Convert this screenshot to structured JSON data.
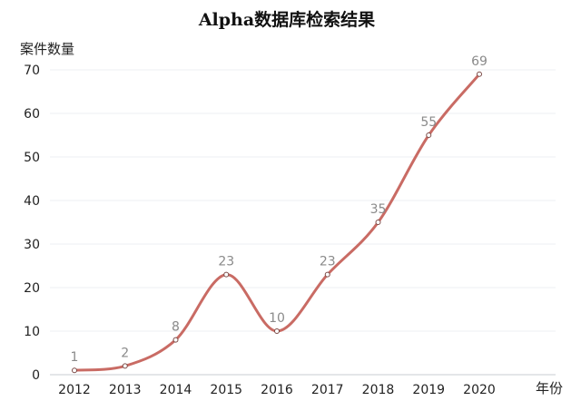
{
  "chart_data": {
    "type": "line",
    "title": "Alpha数据库检索结果",
    "ylabel": "案件数量",
    "xlabel": "年份",
    "categories": [
      "2012",
      "2013",
      "2014",
      "2015",
      "2016",
      "2017",
      "2018",
      "2019",
      "2020"
    ],
    "series": [
      {
        "values": [
          1,
          2,
          8,
          23,
          10,
          23,
          35,
          55,
          69
        ]
      }
    ],
    "ylim": [
      0,
      70
    ],
    "yticks": [
      0,
      10,
      20,
      30,
      40,
      50,
      60,
      70
    ],
    "grid": true,
    "smooth": true,
    "data_labels": true,
    "line_color": "#c96b64",
    "marker_fill": "#ffffff"
  }
}
